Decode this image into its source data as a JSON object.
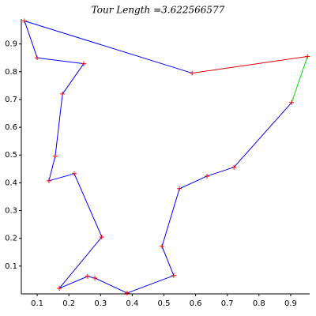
{
  "chart_data": {
    "type": "tour",
    "title": "Tour Length =3.622566577",
    "x": [
      0.06,
      0.1,
      0.247,
      0.18,
      0.157,
      0.137,
      0.217,
      0.304,
      0.17,
      0.259,
      0.282,
      0.384,
      0.531,
      0.494,
      0.549,
      0.636,
      0.721,
      0.903,
      0.953,
      0.589
    ],
    "y": [
      0.983,
      0.85,
      0.829,
      0.72,
      0.496,
      0.407,
      0.433,
      0.205,
      0.02,
      0.063,
      0.057,
      0.003,
      0.066,
      0.171,
      0.379,
      0.424,
      0.456,
      0.689,
      0.855,
      0.795
    ],
    "edge_colors": [
      "#0000ff",
      "#0000ff",
      "#0000ff",
      "#0000ff",
      "#0000ff",
      "#0000ff",
      "#0000ff",
      "#0000ff",
      "#0000ff",
      "#0000ff",
      "#0000ff",
      "#0000ff",
      "#0000ff",
      "#0000ff",
      "#0000ff",
      "#0000ff",
      "#0000ff",
      "#00dd00",
      "#dd0000",
      "#0000ff"
    ],
    "marker_color": "#ff0000",
    "xlim": [
      0.05,
      0.96
    ],
    "ylim": [
      0,
      0.99
    ],
    "xticks": [
      0.1,
      0.2,
      0.3,
      0.4,
      0.5,
      0.6,
      0.7,
      0.8,
      0.9
    ],
    "yticks": [
      0.1,
      0.2,
      0.3,
      0.4,
      0.5,
      0.6,
      0.7,
      0.8,
      0.9
    ]
  }
}
